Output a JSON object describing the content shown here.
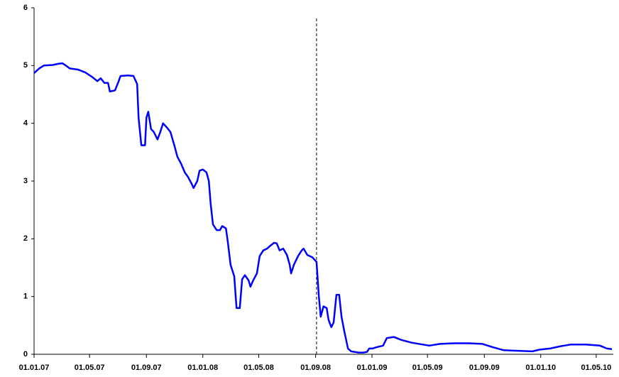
{
  "chart_data": {
    "type": "line",
    "x": [
      "2007-01-01",
      "2007-01-12",
      "2007-01-22",
      "2007-02-11",
      "2007-02-22",
      "2007-03-03",
      "2007-03-11",
      "2007-03-19",
      "2007-04-06",
      "2007-04-22",
      "2007-05-07",
      "2007-05-18",
      "2007-05-25",
      "2007-06-02",
      "2007-06-10",
      "2007-06-14",
      "2007-06-25",
      "2007-07-03",
      "2007-07-07",
      "2007-07-23",
      "2007-08-04",
      "2007-08-12",
      "2007-08-15",
      "2007-08-21",
      "2007-08-29",
      "2007-09-01",
      "2007-09-05",
      "2007-09-11",
      "2007-09-17",
      "2007-09-25",
      "2007-10-01",
      "2007-10-07",
      "2007-10-15",
      "2007-10-23",
      "2007-11-01",
      "2007-11-07",
      "2007-11-15",
      "2007-11-23",
      "2007-11-30",
      "2007-12-08",
      "2007-12-12",
      "2007-12-20",
      "2007-12-25",
      "2008-01-01",
      "2008-01-09",
      "2008-01-14",
      "2008-01-18",
      "2008-01-23",
      "2008-01-31",
      "2008-02-07",
      "2008-02-12",
      "2008-02-20",
      "2008-02-24",
      "2008-03-01",
      "2008-03-09",
      "2008-03-14",
      "2008-03-21",
      "2008-03-26",
      "2008-04-01",
      "2008-04-09",
      "2008-04-13",
      "2008-04-19",
      "2008-04-27",
      "2008-05-03",
      "2008-05-11",
      "2008-05-19",
      "2008-05-26",
      "2008-06-03",
      "2008-06-09",
      "2008-06-15",
      "2008-06-23",
      "2008-07-01",
      "2008-07-07",
      "2008-07-10",
      "2008-07-16",
      "2008-07-25",
      "2008-08-02",
      "2008-08-06",
      "2008-08-14",
      "2008-08-25",
      "2008-09-03",
      "2008-09-08",
      "2008-09-12",
      "2008-09-18",
      "2008-09-25",
      "2008-09-29",
      "2008-10-05",
      "2008-10-10",
      "2008-10-16",
      "2008-10-22",
      "2008-10-27",
      "2008-11-02",
      "2008-11-10",
      "2008-11-17",
      "2008-12-03",
      "2008-12-13",
      "2008-12-21",
      "2008-12-26",
      "2009-01-02",
      "2009-01-10",
      "2009-01-25",
      "2009-02-02",
      "2009-02-17",
      "2009-03-05",
      "2009-03-28",
      "2009-04-20",
      "2009-05-05",
      "2009-05-28",
      "2009-06-28",
      "2009-07-29",
      "2009-08-28",
      "2009-09-20",
      "2009-10-13",
      "2009-11-13",
      "2009-12-14",
      "2009-12-29",
      "2010-01-21",
      "2010-02-13",
      "2010-03-08",
      "2010-04-08",
      "2010-05-09",
      "2010-05-24",
      "2010-06-04"
    ],
    "series": [
      {
        "color": "#0000ff",
        "values": [
          4.87,
          4.95,
          5.0,
          5.01,
          5.03,
          5.04,
          5.0,
          4.95,
          4.93,
          4.88,
          4.8,
          4.73,
          4.78,
          4.7,
          4.7,
          4.55,
          4.57,
          4.73,
          4.82,
          4.83,
          4.82,
          4.68,
          4.1,
          3.62,
          3.62,
          4.1,
          4.2,
          3.9,
          3.85,
          3.72,
          3.85,
          4.0,
          3.93,
          3.85,
          3.6,
          3.42,
          3.3,
          3.15,
          3.07,
          2.95,
          2.88,
          3.0,
          3.18,
          3.2,
          3.15,
          3.0,
          2.6,
          2.25,
          2.15,
          2.15,
          2.22,
          2.18,
          1.95,
          1.55,
          1.35,
          0.8,
          0.8,
          1.3,
          1.37,
          1.28,
          1.17,
          1.28,
          1.4,
          1.7,
          1.8,
          1.83,
          1.88,
          1.93,
          1.92,
          1.8,
          1.83,
          1.72,
          1.55,
          1.4,
          1.55,
          1.7,
          1.8,
          1.83,
          1.72,
          1.68,
          1.6,
          1.0,
          0.65,
          0.83,
          0.8,
          0.6,
          0.47,
          0.55,
          1.03,
          1.03,
          0.65,
          0.4,
          0.1,
          0.05,
          0.03,
          0.03,
          0.04,
          0.1,
          0.1,
          0.12,
          0.15,
          0.28,
          0.3,
          0.25,
          0.2,
          0.17,
          0.15,
          0.18,
          0.19,
          0.19,
          0.18,
          0.12,
          0.07,
          0.06,
          0.05,
          0.08,
          0.1,
          0.14,
          0.17,
          0.17,
          0.15,
          0.1,
          0.09
        ]
      }
    ],
    "xlim": [
      "2007-01-01",
      "2010-06-07"
    ],
    "xticks": [
      {
        "value": "2007-01-01",
        "label": "01.01.07"
      },
      {
        "value": "2007-05-01",
        "label": "01.05.07"
      },
      {
        "value": "2007-09-01",
        "label": "01.09.07"
      },
      {
        "value": "2008-01-01",
        "label": "01.01.08"
      },
      {
        "value": "2008-05-01",
        "label": "01.05.08"
      },
      {
        "value": "2008-09-01",
        "label": "01.09.08"
      },
      {
        "value": "2009-01-01",
        "label": "01.01.09"
      },
      {
        "value": "2009-05-01",
        "label": "01.05.09"
      },
      {
        "value": "2009-09-01",
        "label": "01.09.09"
      },
      {
        "value": "2010-01-01",
        "label": "01.01.10"
      },
      {
        "value": "2010-05-01",
        "label": "01.05.10"
      }
    ],
    "ylim": [
      0,
      6
    ],
    "yticks": [
      0,
      1,
      2,
      3,
      4,
      5,
      6
    ],
    "vline": "2008-09-03"
  }
}
